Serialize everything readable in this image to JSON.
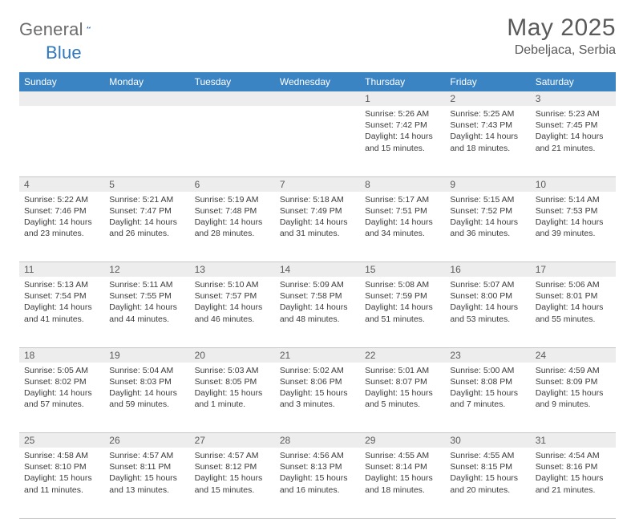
{
  "logo": {
    "part1": "General",
    "part2": "Blue"
  },
  "title": "May 2025",
  "location": "Debeljaca, Serbia",
  "colors": {
    "header_bg": "#3a84c4",
    "header_text": "#ffffff",
    "daynum_bg": "#ededed",
    "text": "#3b3b3b",
    "muted": "#5a5a5a",
    "rule": "#c7c7c7",
    "logo_gray": "#6b6b6b",
    "logo_blue": "#2f77bb"
  },
  "weekdays": [
    "Sunday",
    "Monday",
    "Tuesday",
    "Wednesday",
    "Thursday",
    "Friday",
    "Saturday"
  ],
  "weeks": [
    [
      null,
      null,
      null,
      null,
      {
        "n": "1",
        "sr": "5:26 AM",
        "ss": "7:42 PM",
        "dl": "14 hours and 15 minutes."
      },
      {
        "n": "2",
        "sr": "5:25 AM",
        "ss": "7:43 PM",
        "dl": "14 hours and 18 minutes."
      },
      {
        "n": "3",
        "sr": "5:23 AM",
        "ss": "7:45 PM",
        "dl": "14 hours and 21 minutes."
      }
    ],
    [
      {
        "n": "4",
        "sr": "5:22 AM",
        "ss": "7:46 PM",
        "dl": "14 hours and 23 minutes."
      },
      {
        "n": "5",
        "sr": "5:21 AM",
        "ss": "7:47 PM",
        "dl": "14 hours and 26 minutes."
      },
      {
        "n": "6",
        "sr": "5:19 AM",
        "ss": "7:48 PM",
        "dl": "14 hours and 28 minutes."
      },
      {
        "n": "7",
        "sr": "5:18 AM",
        "ss": "7:49 PM",
        "dl": "14 hours and 31 minutes."
      },
      {
        "n": "8",
        "sr": "5:17 AM",
        "ss": "7:51 PM",
        "dl": "14 hours and 34 minutes."
      },
      {
        "n": "9",
        "sr": "5:15 AM",
        "ss": "7:52 PM",
        "dl": "14 hours and 36 minutes."
      },
      {
        "n": "10",
        "sr": "5:14 AM",
        "ss": "7:53 PM",
        "dl": "14 hours and 39 minutes."
      }
    ],
    [
      {
        "n": "11",
        "sr": "5:13 AM",
        "ss": "7:54 PM",
        "dl": "14 hours and 41 minutes."
      },
      {
        "n": "12",
        "sr": "5:11 AM",
        "ss": "7:55 PM",
        "dl": "14 hours and 44 minutes."
      },
      {
        "n": "13",
        "sr": "5:10 AM",
        "ss": "7:57 PM",
        "dl": "14 hours and 46 minutes."
      },
      {
        "n": "14",
        "sr": "5:09 AM",
        "ss": "7:58 PM",
        "dl": "14 hours and 48 minutes."
      },
      {
        "n": "15",
        "sr": "5:08 AM",
        "ss": "7:59 PM",
        "dl": "14 hours and 51 minutes."
      },
      {
        "n": "16",
        "sr": "5:07 AM",
        "ss": "8:00 PM",
        "dl": "14 hours and 53 minutes."
      },
      {
        "n": "17",
        "sr": "5:06 AM",
        "ss": "8:01 PM",
        "dl": "14 hours and 55 minutes."
      }
    ],
    [
      {
        "n": "18",
        "sr": "5:05 AM",
        "ss": "8:02 PM",
        "dl": "14 hours and 57 minutes."
      },
      {
        "n": "19",
        "sr": "5:04 AM",
        "ss": "8:03 PM",
        "dl": "14 hours and 59 minutes."
      },
      {
        "n": "20",
        "sr": "5:03 AM",
        "ss": "8:05 PM",
        "dl": "15 hours and 1 minute."
      },
      {
        "n": "21",
        "sr": "5:02 AM",
        "ss": "8:06 PM",
        "dl": "15 hours and 3 minutes."
      },
      {
        "n": "22",
        "sr": "5:01 AM",
        "ss": "8:07 PM",
        "dl": "15 hours and 5 minutes."
      },
      {
        "n": "23",
        "sr": "5:00 AM",
        "ss": "8:08 PM",
        "dl": "15 hours and 7 minutes."
      },
      {
        "n": "24",
        "sr": "4:59 AM",
        "ss": "8:09 PM",
        "dl": "15 hours and 9 minutes."
      }
    ],
    [
      {
        "n": "25",
        "sr": "4:58 AM",
        "ss": "8:10 PM",
        "dl": "15 hours and 11 minutes."
      },
      {
        "n": "26",
        "sr": "4:57 AM",
        "ss": "8:11 PM",
        "dl": "15 hours and 13 minutes."
      },
      {
        "n": "27",
        "sr": "4:57 AM",
        "ss": "8:12 PM",
        "dl": "15 hours and 15 minutes."
      },
      {
        "n": "28",
        "sr": "4:56 AM",
        "ss": "8:13 PM",
        "dl": "15 hours and 16 minutes."
      },
      {
        "n": "29",
        "sr": "4:55 AM",
        "ss": "8:14 PM",
        "dl": "15 hours and 18 minutes."
      },
      {
        "n": "30",
        "sr": "4:55 AM",
        "ss": "8:15 PM",
        "dl": "15 hours and 20 minutes."
      },
      {
        "n": "31",
        "sr": "4:54 AM",
        "ss": "8:16 PM",
        "dl": "15 hours and 21 minutes."
      }
    ]
  ],
  "labels": {
    "sunrise": "Sunrise:",
    "sunset": "Sunset:",
    "daylight": "Daylight:"
  }
}
